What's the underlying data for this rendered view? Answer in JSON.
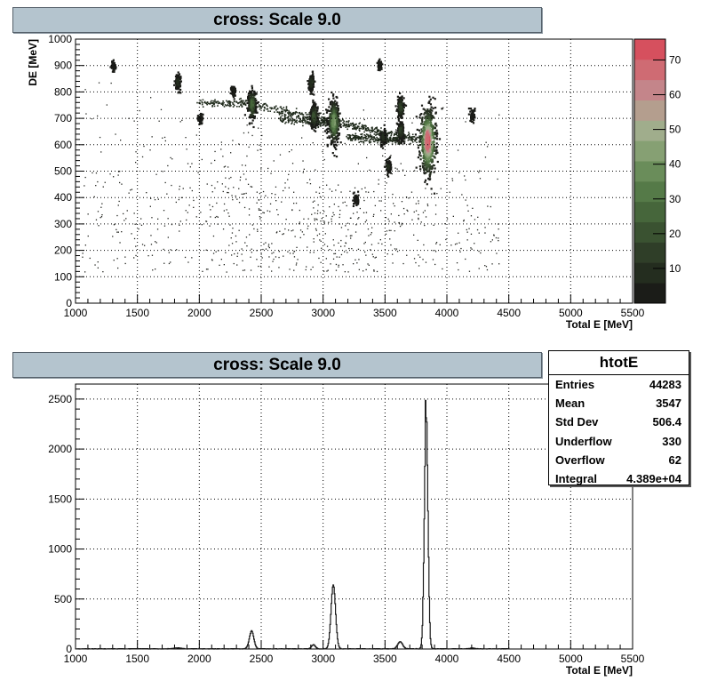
{
  "chart_data": [
    {
      "type": "heatmap",
      "title": "cross: Scale 9.0",
      "xlabel": "Total E [MeV]",
      "ylabel": "DE [MeV]",
      "xlim": [
        1000,
        5500
      ],
      "ylim": [
        0,
        1000
      ],
      "xticks": [
        "1000",
        "1500",
        "2000",
        "2500",
        "3000",
        "3500",
        "4000",
        "4500",
        "5000",
        "5500"
      ],
      "yticks": [
        "0",
        "100",
        "200",
        "300",
        "400",
        "500",
        "600",
        "700",
        "800",
        "900",
        "1000"
      ],
      "grid": true,
      "colorbar": {
        "range": [
          0,
          76
        ],
        "ticks": [
          "10",
          "20",
          "30",
          "40",
          "50",
          "60",
          "70"
        ],
        "colors": [
          "#1b1c18",
          "#242d1f",
          "#2f3e28",
          "#3a5231",
          "#46663b",
          "#557a48",
          "#6a8d5a",
          "#86a073",
          "#a0ad8c",
          "#b49e8e",
          "#c4858a",
          "#cf6b73",
          "#d6505e"
        ]
      },
      "clusters": [
        {
          "x": 3840,
          "y": 615,
          "weight": 76
        },
        {
          "x": 3080,
          "y": 690,
          "weight": 45
        },
        {
          "x": 2420,
          "y": 755,
          "weight": 28
        },
        {
          "x": 2920,
          "y": 710,
          "weight": 22
        },
        {
          "x": 3620,
          "y": 745,
          "weight": 18
        },
        {
          "x": 3620,
          "y": 655,
          "weight": 16
        },
        {
          "x": 2900,
          "y": 840,
          "weight": 12
        },
        {
          "x": 1820,
          "y": 840,
          "weight": 10
        },
        {
          "x": 3480,
          "y": 630,
          "weight": 10
        },
        {
          "x": 3520,
          "y": 520,
          "weight": 8
        },
        {
          "x": 3260,
          "y": 395,
          "weight": 6
        },
        {
          "x": 4200,
          "y": 715,
          "weight": 6
        },
        {
          "x": 2270,
          "y": 805,
          "weight": 6
        },
        {
          "x": 1300,
          "y": 900,
          "weight": 4
        },
        {
          "x": 3450,
          "y": 905,
          "weight": 3
        },
        {
          "x": 2000,
          "y": 700,
          "weight": 3
        }
      ],
      "ridges": [
        {
          "from": [
            3080,
            690
          ],
          "to": [
            3840,
            615
          ],
          "weight": 5
        },
        {
          "from": [
            2420,
            755
          ],
          "to": [
            3080,
            690
          ],
          "weight": 3
        },
        {
          "from": [
            2650,
            700
          ],
          "to": [
            3080,
            680
          ],
          "weight": 3
        },
        {
          "from": [
            3200,
            630
          ],
          "to": [
            3620,
            620
          ],
          "weight": 4
        },
        {
          "from": [
            2000,
            760
          ],
          "to": [
            2420,
            760
          ],
          "weight": 2
        }
      ]
    },
    {
      "type": "line",
      "title": "cross: Scale 9.0",
      "xlabel": "Total E [MeV]",
      "ylabel": "",
      "xlim": [
        1000,
        5500
      ],
      "ylim": [
        0,
        2650
      ],
      "xticks": [
        "1000",
        "1500",
        "2000",
        "2500",
        "3000",
        "3500",
        "4000",
        "4500",
        "5000",
        "5500"
      ],
      "yticks": [
        "0",
        "500",
        "1000",
        "1500",
        "2000",
        "2500"
      ],
      "grid": true,
      "peaks": [
        {
          "x": 1820,
          "height": 10,
          "width": 25
        },
        {
          "x": 2420,
          "height": 180,
          "width": 18
        },
        {
          "x": 2920,
          "height": 40,
          "width": 15
        },
        {
          "x": 3080,
          "height": 640,
          "width": 18
        },
        {
          "x": 3620,
          "height": 70,
          "width": 20
        },
        {
          "x": 3830,
          "height": 2500,
          "width": 14
        },
        {
          "x": 4200,
          "height": 8,
          "width": 20
        }
      ]
    }
  ],
  "stats": {
    "name": "htotE",
    "rows": [
      {
        "label": "Entries",
        "value": "44283"
      },
      {
        "label": "Mean",
        "value": "3547"
      },
      {
        "label": "Std Dev",
        "value": "506.4"
      },
      {
        "label": "Underflow",
        "value": "330"
      },
      {
        "label": "Overflow",
        "value": "62"
      },
      {
        "label": "Integral",
        "value": "4.389e+04"
      }
    ]
  }
}
